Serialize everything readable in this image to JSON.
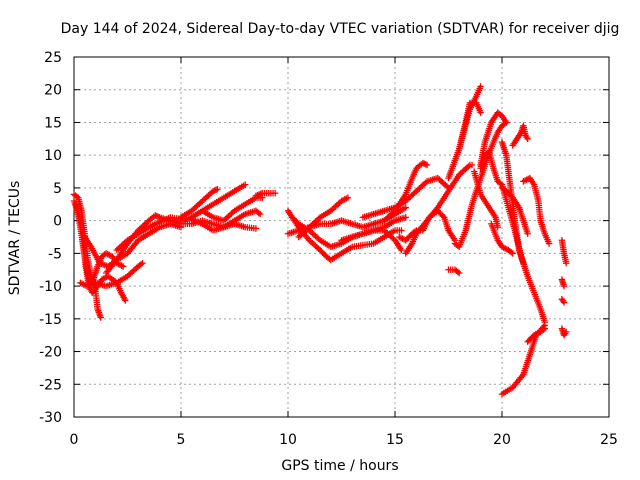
{
  "chart_data": {
    "type": "scatter",
    "title": "Day 144 of 2024, Sidereal Day-to-day VTEC variation (SDTVAR) for receiver djig",
    "xlabel": "GPS time / hours",
    "ylabel": "SDTVAR / TECUs",
    "xlim": [
      0,
      25
    ],
    "ylim": [
      -30,
      25
    ],
    "xticks": [
      "0",
      "5",
      "10",
      "15",
      "20",
      "25"
    ],
    "yticks": [
      "25",
      "20",
      "15",
      "10",
      "5",
      "0",
      "-5",
      "-10",
      "-15",
      "-20",
      "-25",
      "-30"
    ],
    "grid": true,
    "marker": "+",
    "color": "#ff0000",
    "tracks": [
      [
        [
          0.0,
          4.0
        ],
        [
          0.2,
          3.5
        ],
        [
          0.35,
          1.5
        ],
        [
          0.5,
          -2.0
        ],
        [
          0.65,
          -6.0
        ],
        [
          0.8,
          -8.5
        ],
        [
          1.0,
          -10.5
        ],
        [
          1.1,
          -13.5
        ],
        [
          1.25,
          -14.8
        ]
      ],
      [
        [
          0.0,
          3.0
        ],
        [
          0.15,
          1.5
        ],
        [
          0.3,
          -1.0
        ],
        [
          0.45,
          -4.5
        ],
        [
          0.6,
          -7.5
        ],
        [
          0.75,
          -9.5
        ],
        [
          0.9,
          -9.0
        ],
        [
          1.1,
          -7.0
        ],
        [
          1.3,
          -5.5
        ],
        [
          1.5,
          -5.0
        ],
        [
          1.8,
          -5.5
        ],
        [
          2.0,
          -6.5
        ],
        [
          2.3,
          -7.0
        ]
      ],
      [
        [
          0.1,
          2.5
        ],
        [
          0.3,
          0.0
        ],
        [
          0.45,
          -3.5
        ],
        [
          0.55,
          -7.0
        ],
        [
          0.7,
          -10.0
        ],
        [
          0.85,
          -11.0
        ],
        [
          1.0,
          -10.5
        ],
        [
          1.3,
          -9.0
        ],
        [
          1.6,
          -8.5
        ],
        [
          2.0,
          -9.5
        ],
        [
          2.2,
          -11.0
        ],
        [
          2.4,
          -12.2
        ]
      ],
      [
        [
          0.3,
          -9.5
        ],
        [
          0.6,
          -10.0
        ],
        [
          1.0,
          -9.5
        ],
        [
          1.5,
          -10.0
        ],
        [
          2.0,
          -9.5
        ],
        [
          2.5,
          -8.5
        ],
        [
          3.0,
          -7.0
        ],
        [
          3.2,
          -6.5
        ]
      ],
      [
        [
          0.5,
          -2.5
        ],
        [
          0.8,
          -4.0
        ],
        [
          1.2,
          -6.5
        ],
        [
          1.6,
          -7.0
        ],
        [
          2.0,
          -6.0
        ],
        [
          2.5,
          -5.0
        ],
        [
          3.0,
          -3.0
        ],
        [
          3.5,
          -2.0
        ],
        [
          4.0,
          -1.0
        ],
        [
          4.5,
          -0.5
        ],
        [
          5.0,
          -1.0
        ]
      ],
      [
        [
          1.5,
          -8.0
        ],
        [
          2.0,
          -6.0
        ],
        [
          2.5,
          -3.5
        ],
        [
          3.0,
          -1.5
        ],
        [
          3.5,
          0.0
        ],
        [
          3.8,
          0.8
        ],
        [
          4.0,
          0.5
        ],
        [
          4.5,
          0.0
        ],
        [
          5.0,
          -0.5
        ]
      ],
      [
        [
          2.0,
          -4.5
        ],
        [
          2.5,
          -3.0
        ],
        [
          3.0,
          -2.0
        ],
        [
          3.5,
          -1.0
        ],
        [
          4.0,
          -0.2
        ],
        [
          4.5,
          0.5
        ],
        [
          4.9,
          0.3
        ]
      ],
      [
        [
          5.0,
          0.5
        ],
        [
          5.5,
          1.5
        ],
        [
          6.0,
          3.0
        ],
        [
          6.5,
          4.5
        ],
        [
          6.7,
          4.8
        ]
      ],
      [
        [
          5.0,
          0.0
        ],
        [
          5.5,
          0.5
        ],
        [
          6.0,
          1.5
        ],
        [
          6.5,
          2.5
        ],
        [
          7.0,
          3.5
        ],
        [
          7.5,
          4.5
        ],
        [
          8.0,
          5.5
        ]
      ],
      [
        [
          5.0,
          -0.5
        ],
        [
          5.5,
          -0.5
        ],
        [
          6.0,
          0.0
        ],
        [
          6.5,
          -0.5
        ],
        [
          7.0,
          -1.0
        ],
        [
          7.5,
          0.0
        ],
        [
          8.0,
          1.0
        ],
        [
          8.5,
          1.5
        ],
        [
          8.7,
          1.0
        ]
      ],
      [
        [
          5.5,
          0.2
        ],
        [
          6.0,
          -0.5
        ],
        [
          6.5,
          -1.5
        ],
        [
          7.0,
          -1.0
        ],
        [
          7.5,
          -0.5
        ],
        [
          8.0,
          -1.0
        ],
        [
          8.5,
          -1.2
        ]
      ],
      [
        [
          6.0,
          1.5
        ],
        [
          6.5,
          0.5
        ],
        [
          7.0,
          0.0
        ],
        [
          7.5,
          1.5
        ],
        [
          8.0,
          2.5
        ],
        [
          8.5,
          3.5
        ],
        [
          8.8,
          3.5
        ]
      ],
      [
        [
          8.5,
          3.8
        ],
        [
          8.8,
          4.2
        ],
        [
          9.2,
          4.2
        ],
        [
          9.4,
          4.2
        ]
      ],
      [
        [
          10.0,
          1.5
        ],
        [
          10.3,
          0.0
        ],
        [
          10.6,
          -1.5
        ],
        [
          11.0,
          -3.0
        ],
        [
          11.5,
          -4.5
        ],
        [
          11.8,
          -5.5
        ],
        [
          12.0,
          -6.0
        ],
        [
          12.5,
          -5.0
        ],
        [
          13.0,
          -4.0
        ],
        [
          14.0,
          -3.5
        ],
        [
          14.5,
          -2.5
        ],
        [
          15.0,
          -1.5
        ],
        [
          15.3,
          -1.5
        ]
      ],
      [
        [
          10.2,
          0.5
        ],
        [
          10.5,
          -0.5
        ],
        [
          11.0,
          -1.5
        ],
        [
          11.5,
          -3.0
        ],
        [
          12.0,
          -4.0
        ],
        [
          12.5,
          -3.5
        ],
        [
          13.0,
          -2.5
        ],
        [
          13.5,
          -2.0
        ],
        [
          14.0,
          -1.5
        ],
        [
          14.5,
          -1.0
        ],
        [
          15.0,
          0.0
        ],
        [
          15.5,
          0.5
        ]
      ],
      [
        [
          10.0,
          -2.0
        ],
        [
          10.5,
          -1.5
        ],
        [
          11.0,
          -1.0
        ],
        [
          11.5,
          -0.5
        ],
        [
          12.0,
          -0.5
        ],
        [
          12.5,
          0.0
        ],
        [
          13.0,
          -0.5
        ],
        [
          13.5,
          -1.0
        ],
        [
          14.0,
          -0.5
        ],
        [
          14.5,
          0.0
        ],
        [
          15.0,
          1.0
        ],
        [
          15.5,
          2.0
        ]
      ],
      [
        [
          10.5,
          -2.5
        ],
        [
          11.0,
          -1.0
        ],
        [
          11.5,
          0.5
        ],
        [
          12.0,
          1.5
        ],
        [
          12.5,
          3.0
        ],
        [
          12.8,
          3.5
        ]
      ],
      [
        [
          12.5,
          -3.0
        ],
        [
          13.0,
          -2.5
        ],
        [
          13.5,
          -2.0
        ],
        [
          14.0,
          -1.5
        ],
        [
          14.5,
          -1.5
        ],
        [
          15.0,
          -3.0
        ],
        [
          15.3,
          -4.5
        ]
      ],
      [
        [
          13.5,
          0.5
        ],
        [
          14.0,
          1.0
        ],
        [
          14.5,
          1.5
        ],
        [
          15.0,
          2.0
        ],
        [
          15.5,
          3.0
        ],
        [
          16.0,
          4.5
        ],
        [
          16.5,
          6.0
        ],
        [
          17.0,
          6.5
        ],
        [
          17.5,
          5.0
        ]
      ],
      [
        [
          14.5,
          0.0
        ],
        [
          15.0,
          1.5
        ],
        [
          15.5,
          4.0
        ],
        [
          15.8,
          6.5
        ],
        [
          16.0,
          8.0
        ],
        [
          16.3,
          8.8
        ],
        [
          16.5,
          8.5
        ]
      ],
      [
        [
          15.2,
          -2.5
        ],
        [
          15.5,
          -3.0
        ],
        [
          15.8,
          -2.0
        ],
        [
          16.0,
          -1.5
        ],
        [
          16.3,
          -1.5
        ],
        [
          16.6,
          0.5
        ],
        [
          17.0,
          1.5
        ],
        [
          17.3,
          0.5
        ],
        [
          17.5,
          -1.5
        ],
        [
          17.8,
          -3.0
        ]
      ],
      [
        [
          15.5,
          -5.0
        ],
        [
          15.8,
          -3.5
        ],
        [
          16.0,
          -2.0
        ],
        [
          16.5,
          0.0
        ],
        [
          17.0,
          2.0
        ],
        [
          17.5,
          4.5
        ],
        [
          18.0,
          7.0
        ],
        [
          18.5,
          8.5
        ],
        [
          18.6,
          8.5
        ]
      ],
      [
        [
          17.5,
          -7.5
        ],
        [
          17.8,
          -7.5
        ],
        [
          18.0,
          -8.0
        ]
      ],
      [
        [
          18.0,
          11.0
        ],
        [
          18.5,
          17.0
        ],
        [
          18.8,
          19.0
        ],
        [
          19.0,
          20.5
        ]
      ],
      [
        [
          17.5,
          6.5
        ],
        [
          18.0,
          11.0
        ],
        [
          18.3,
          15.0
        ],
        [
          18.5,
          18.0
        ],
        [
          18.8,
          18.0
        ],
        [
          19.0,
          16.5
        ]
      ],
      [
        [
          17.8,
          -3.5
        ],
        [
          18.0,
          -4.0
        ],
        [
          18.3,
          -1.5
        ],
        [
          18.6,
          2.5
        ],
        [
          19.0,
          6.5
        ],
        [
          19.3,
          9.5
        ],
        [
          19.6,
          12.0
        ],
        [
          19.8,
          13.5
        ],
        [
          20.0,
          14.5
        ],
        [
          20.2,
          15.0
        ]
      ],
      [
        [
          18.7,
          7.5
        ],
        [
          19.0,
          4.0
        ],
        [
          19.5,
          1.5
        ],
        [
          19.7,
          0.5
        ],
        [
          19.8,
          -1.0
        ]
      ],
      [
        [
          19.0,
          8.5
        ],
        [
          19.2,
          12.0
        ],
        [
          19.5,
          15.0
        ],
        [
          19.8,
          16.5
        ],
        [
          20.0,
          16.0
        ],
        [
          20.2,
          15.0
        ]
      ],
      [
        [
          19.5,
          -0.5
        ],
        [
          19.8,
          -3.0
        ],
        [
          20.0,
          -4.0
        ],
        [
          20.3,
          -4.5
        ],
        [
          20.5,
          -5.0
        ]
      ],
      [
        [
          19.0,
          8.0
        ],
        [
          19.2,
          10.0
        ],
        [
          19.4,
          10.5
        ],
        [
          19.6,
          8.0
        ],
        [
          19.8,
          6.0
        ],
        [
          20.0,
          5.5
        ],
        [
          20.3,
          2.0
        ],
        [
          20.6,
          -1.5
        ],
        [
          20.9,
          -5.5
        ],
        [
          21.2,
          -8.5
        ],
        [
          21.5,
          -11.0
        ],
        [
          21.8,
          -13.5
        ],
        [
          22.0,
          -15.5
        ]
      ],
      [
        [
          20.0,
          12.0
        ],
        [
          20.2,
          10.0
        ],
        [
          20.4,
          5.0
        ],
        [
          20.6,
          0.0
        ],
        [
          20.8,
          -4.5
        ],
        [
          21.0,
          -6.5
        ]
      ],
      [
        [
          20.5,
          11.5
        ],
        [
          20.7,
          12.5
        ],
        [
          20.9,
          13.5
        ],
        [
          21.0,
          14.5
        ],
        [
          21.1,
          13.0
        ],
        [
          21.2,
          12.5
        ]
      ],
      [
        [
          20.0,
          5.0
        ],
        [
          20.2,
          4.5
        ],
        [
          20.5,
          3.5
        ],
        [
          20.8,
          2.0
        ],
        [
          21.0,
          0.0
        ],
        [
          21.2,
          -2.0
        ]
      ],
      [
        [
          20.0,
          -26.5
        ],
        [
          20.5,
          -25.5
        ],
        [
          21.0,
          -23.5
        ],
        [
          21.3,
          -20.5
        ],
        [
          21.6,
          -17.5
        ],
        [
          22.0,
          -16.0
        ]
      ],
      [
        [
          21.0,
          6.0
        ],
        [
          21.3,
          6.5
        ],
        [
          21.5,
          5.5
        ],
        [
          21.7,
          3.0
        ],
        [
          21.8,
          0.0
        ],
        [
          22.0,
          -2.0
        ],
        [
          22.2,
          -3.5
        ]
      ],
      [
        [
          21.2,
          -18.5
        ],
        [
          21.5,
          -17.5
        ],
        [
          21.8,
          -17.0
        ],
        [
          22.0,
          -16.5
        ]
      ],
      [
        [
          22.8,
          -3.0
        ],
        [
          22.9,
          -5.0
        ],
        [
          23.0,
          -6.5
        ]
      ],
      [
        [
          22.8,
          -9.0
        ],
        [
          22.9,
          -10.0
        ]
      ],
      [
        [
          22.8,
          -12.0
        ],
        [
          22.9,
          -12.5
        ]
      ],
      [
        [
          22.8,
          -16.5
        ],
        [
          22.9,
          -17.5
        ],
        [
          23.0,
          -17.0
        ]
      ]
    ]
  }
}
